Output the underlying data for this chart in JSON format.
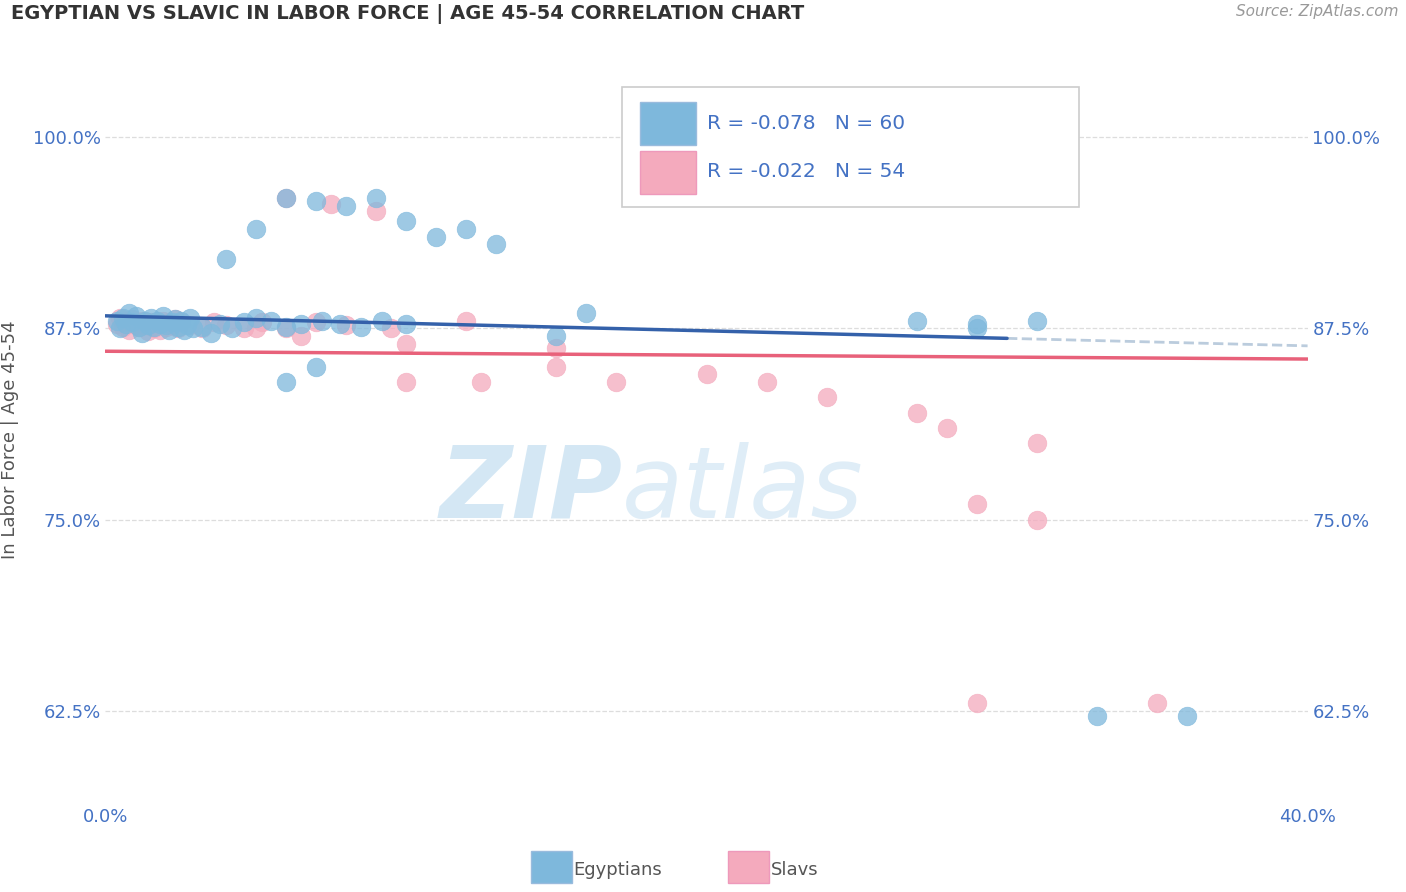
{
  "title": "EGYPTIAN VS SLAVIC IN LABOR FORCE | AGE 45-54 CORRELATION CHART",
  "source": "Source: ZipAtlas.com",
  "ylabel": "In Labor Force | Age 45-54",
  "legend_r1": "R = -0.078",
  "legend_n1": "N = 60",
  "legend_r2": "R = -0.022",
  "legend_n2": "N = 54",
  "xlim": [
    0.0,
    0.4
  ],
  "ylim": [
    0.565,
    1.04
  ],
  "yticks": [
    0.625,
    0.75,
    0.875,
    1.0
  ],
  "ytick_labels": [
    "62.5%",
    "75.0%",
    "87.5%",
    "100.0%"
  ],
  "xtick_positions": [
    0.0,
    0.4
  ],
  "xtick_labels": [
    "0.0%",
    "40.0%"
  ],
  "blue_color": "#7EB8DC",
  "pink_color": "#F4AABD",
  "line_blue": "#3461AA",
  "line_pink": "#E8617A",
  "dash_color": "#BBCCDD",
  "title_color": "#333333",
  "source_color": "#999999",
  "tick_color": "#4472C4",
  "grid_color": "#DDDDDD",
  "bg_color": "#ffffff",
  "blue_x": [
    0.004,
    0.005,
    0.006,
    0.007,
    0.008,
    0.009,
    0.01,
    0.011,
    0.012,
    0.013,
    0.014,
    0.015,
    0.016,
    0.017,
    0.018,
    0.019,
    0.02,
    0.021,
    0.022,
    0.023,
    0.024,
    0.025,
    0.026,
    0.027,
    0.028,
    0.029,
    0.032,
    0.035,
    0.038,
    0.042,
    0.046,
    0.05,
    0.055,
    0.06,
    0.065,
    0.072,
    0.078,
    0.085,
    0.092,
    0.1,
    0.04,
    0.05,
    0.06,
    0.07,
    0.08,
    0.09,
    0.1,
    0.11,
    0.12,
    0.13,
    0.06,
    0.07,
    0.15,
    0.16,
    0.27,
    0.29,
    0.29,
    0.31,
    0.33,
    0.36
  ],
  "blue_y": [
    0.88,
    0.875,
    0.882,
    0.878,
    0.885,
    0.879,
    0.883,
    0.876,
    0.872,
    0.88,
    0.877,
    0.882,
    0.876,
    0.88,
    0.878,
    0.883,
    0.877,
    0.874,
    0.879,
    0.881,
    0.876,
    0.88,
    0.874,
    0.877,
    0.882,
    0.875,
    0.876,
    0.872,
    0.878,
    0.875,
    0.879,
    0.882,
    0.88,
    0.876,
    0.878,
    0.88,
    0.878,
    0.876,
    0.88,
    0.878,
    0.92,
    0.94,
    0.96,
    0.958,
    0.955,
    0.96,
    0.945,
    0.935,
    0.94,
    0.93,
    0.84,
    0.85,
    0.87,
    0.885,
    0.88,
    0.875,
    0.878,
    0.88,
    0.622,
    0.622
  ],
  "pink_x": [
    0.004,
    0.005,
    0.006,
    0.007,
    0.008,
    0.009,
    0.01,
    0.011,
    0.012,
    0.013,
    0.014,
    0.015,
    0.016,
    0.017,
    0.018,
    0.019,
    0.02,
    0.021,
    0.022,
    0.023,
    0.024,
    0.025,
    0.028,
    0.032,
    0.036,
    0.04,
    0.046,
    0.052,
    0.06,
    0.07,
    0.08,
    0.095,
    0.06,
    0.075,
    0.09,
    0.05,
    0.065,
    0.1,
    0.12,
    0.15,
    0.1,
    0.125,
    0.15,
    0.17,
    0.2,
    0.22,
    0.24,
    0.27,
    0.28,
    0.31,
    0.31,
    0.29,
    0.29,
    0.35
  ],
  "pink_y": [
    0.878,
    0.882,
    0.876,
    0.88,
    0.874,
    0.881,
    0.877,
    0.876,
    0.88,
    0.877,
    0.873,
    0.879,
    0.875,
    0.878,
    0.874,
    0.88,
    0.876,
    0.879,
    0.877,
    0.881,
    0.875,
    0.879,
    0.877,
    0.875,
    0.879,
    0.877,
    0.875,
    0.879,
    0.875,
    0.879,
    0.877,
    0.875,
    0.96,
    0.956,
    0.952,
    0.875,
    0.87,
    0.865,
    0.88,
    0.862,
    0.84,
    0.84,
    0.85,
    0.84,
    0.845,
    0.84,
    0.83,
    0.82,
    0.81,
    0.8,
    0.75,
    0.76,
    0.63,
    0.63
  ]
}
